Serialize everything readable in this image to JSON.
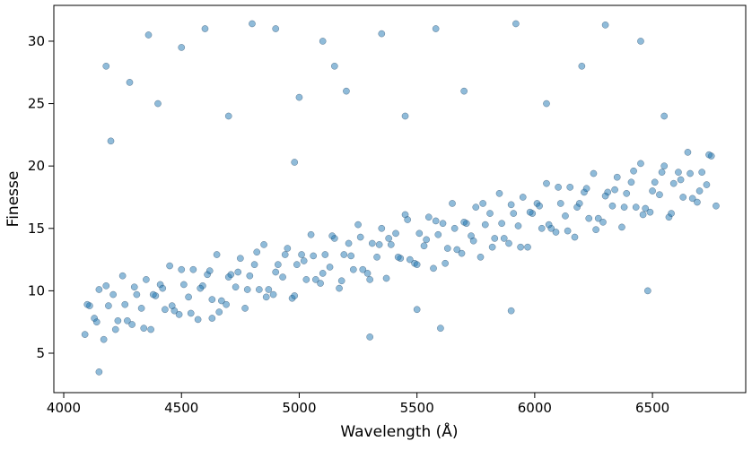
{
  "chart_data": {
    "type": "scatter",
    "xlabel": "Wavelength (Å)",
    "ylabel": "Finesse",
    "color": "#1f77b4",
    "xlim": [
      3958,
      6896
    ],
    "ylim": [
      1.84,
      32.87
    ],
    "xticks": [
      4000,
      4500,
      5000,
      5500,
      6000,
      6500
    ],
    "yticks": [
      5,
      10,
      15,
      20,
      25,
      30
    ],
    "x": [
      4090,
      4110,
      4130,
      4150,
      4170,
      4190,
      4210,
      4230,
      4250,
      4270,
      4290,
      4310,
      4330,
      4350,
      4370,
      4390,
      4410,
      4430,
      4450,
      4470,
      4490,
      4510,
      4530,
      4550,
      4570,
      4590,
      4610,
      4630,
      4650,
      4670,
      4690,
      4710,
      4730,
      4750,
      4770,
      4790,
      4810,
      4830,
      4850,
      4870,
      4890,
      4910,
      4930,
      4950,
      4970,
      4990,
      5010,
      5030,
      5050,
      5070,
      5090,
      5110,
      5130,
      5150,
      5170,
      5190,
      5210,
      5230,
      5250,
      5270,
      5290,
      5310,
      5330,
      5350,
      5370,
      5390,
      5410,
      5430,
      5450,
      5470,
      5490,
      5510,
      5530,
      5550,
      5570,
      5590,
      5610,
      5630,
      5650,
      5670,
      5690,
      5710,
      5730,
      5750,
      5770,
      5790,
      5810,
      5830,
      5850,
      5870,
      5890,
      5910,
      5930,
      5950,
      5970,
      5990,
      6010,
      6030,
      6050,
      6070,
      6090,
      6110,
      6130,
      6150,
      6170,
      6190,
      6210,
      6230,
      6250,
      6270,
      6290,
      6310,
      6330,
      6350,
      6370,
      6390,
      6410,
      6430,
      6450,
      6470,
      6490,
      6510,
      6530,
      6550,
      6570,
      6590,
      6610,
      6630,
      6650,
      6670,
      6690,
      6710,
      6730,
      6750,
      6770,
      4100,
      4140,
      4180,
      4220,
      4260,
      4300,
      4340,
      4380,
      4420,
      4460,
      4500,
      4540,
      4580,
      4620,
      4660,
      4700,
      4740,
      4780,
      4820,
      4860,
      4900,
      4940,
      4980,
      5020,
      5060,
      5100,
      5140,
      5180,
      5220,
      5260,
      5300,
      5340,
      5380,
      5420,
      5460,
      5500,
      5540,
      5580,
      5620,
      5660,
      5700,
      5740,
      5780,
      5820,
      5860,
      5900,
      5940,
      5980,
      6020,
      6060,
      6100,
      6140,
      6180,
      6220,
      6260,
      6300,
      6340,
      6380,
      6420,
      6460,
      6500,
      6540,
      6580,
      6620,
      6660,
      6700,
      6740,
      4150,
      4180,
      4360,
      4500,
      4600,
      4800,
      4900,
      5100,
      5350,
      5580,
      5920,
      6300,
      6450,
      4200,
      4400,
      4700,
      5000,
      5200,
      5450,
      5700,
      6050,
      6550,
      5300,
      5600,
      5900,
      6480,
      4280,
      5150,
      6200,
      4630,
      4980,
      5500
    ],
    "values": [
      6.5,
      8.8,
      7.8,
      10.1,
      6.1,
      8.8,
      9.7,
      7.6,
      11.2,
      7.6,
      7.3,
      9.7,
      8.6,
      10.9,
      6.9,
      9.6,
      10.5,
      8.5,
      12.0,
      8.4,
      8.1,
      10.5,
      9.5,
      11.7,
      7.7,
      10.4,
      11.3,
      9.3,
      12.9,
      9.2,
      8.9,
      11.3,
      10.3,
      12.6,
      8.6,
      11.2,
      12.1,
      10.1,
      13.7,
      10.1,
      9.7,
      12.1,
      11.1,
      13.4,
      9.4,
      12.1,
      12.9,
      10.9,
      14.5,
      10.9,
      10.6,
      12.9,
      11.9,
      14.2,
      10.2,
      12.9,
      13.8,
      11.7,
      15.3,
      11.7,
      11.4,
      13.8,
      12.7,
      15.0,
      11.0,
      13.7,
      14.6,
      12.6,
      16.1,
      12.5,
      12.2,
      14.6,
      13.6,
      15.9,
      11.8,
      14.5,
      15.4,
      13.4,
      17.0,
      13.3,
      13.0,
      15.4,
      14.4,
      16.7,
      12.7,
      15.3,
      16.2,
      14.2,
      17.8,
      14.2,
      13.8,
      16.2,
      15.2,
      17.5,
      13.5,
      16.2,
      17.0,
      15.0,
      18.6,
      15.0,
      14.7,
      17.0,
      16.0,
      18.3,
      14.3,
      17.0,
      17.9,
      15.8,
      19.4,
      15.8,
      15.5,
      17.9,
      16.8,
      19.1,
      15.1,
      17.8,
      18.7,
      16.7,
      20.2,
      16.6,
      16.3,
      18.7,
      17.7,
      20.0,
      15.9,
      18.6,
      19.5,
      17.5,
      21.1,
      17.4,
      17.1,
      19.5,
      18.5,
      20.8,
      16.8,
      8.9,
      7.5,
      10.4,
      6.9,
      8.9,
      10.3,
      7.0,
      9.7,
      10.2,
      8.8,
      11.7,
      8.2,
      10.2,
      11.6,
      8.3,
      11.1,
      11.5,
      10.1,
      13.1,
      9.5,
      11.5,
      12.9,
      9.6,
      12.4,
      12.8,
      11.4,
      14.4,
      10.8,
      12.8,
      14.3,
      10.9,
      13.7,
      14.2,
      12.7,
      15.7,
      12.1,
      14.1,
      15.6,
      12.2,
      15.0,
      15.5,
      14.0,
      17.0,
      13.5,
      15.4,
      16.9,
      13.5,
      16.3,
      16.8,
      15.3,
      18.3,
      14.8,
      16.7,
      18.2,
      14.9,
      17.6,
      18.1,
      16.7,
      19.6,
      16.1,
      18.0,
      19.5,
      16.2,
      18.9,
      19.4,
      18.0,
      20.9,
      3.5,
      28,
      30.5,
      29.5,
      31,
      31.4,
      31,
      30,
      30.6,
      31,
      31.4,
      31.3,
      30,
      22,
      25,
      24,
      25.5,
      26,
      24,
      26,
      25,
      24,
      6.3,
      7,
      8.4,
      10,
      26.7,
      28,
      28,
      7.8,
      20.3,
      8.5
    ]
  }
}
